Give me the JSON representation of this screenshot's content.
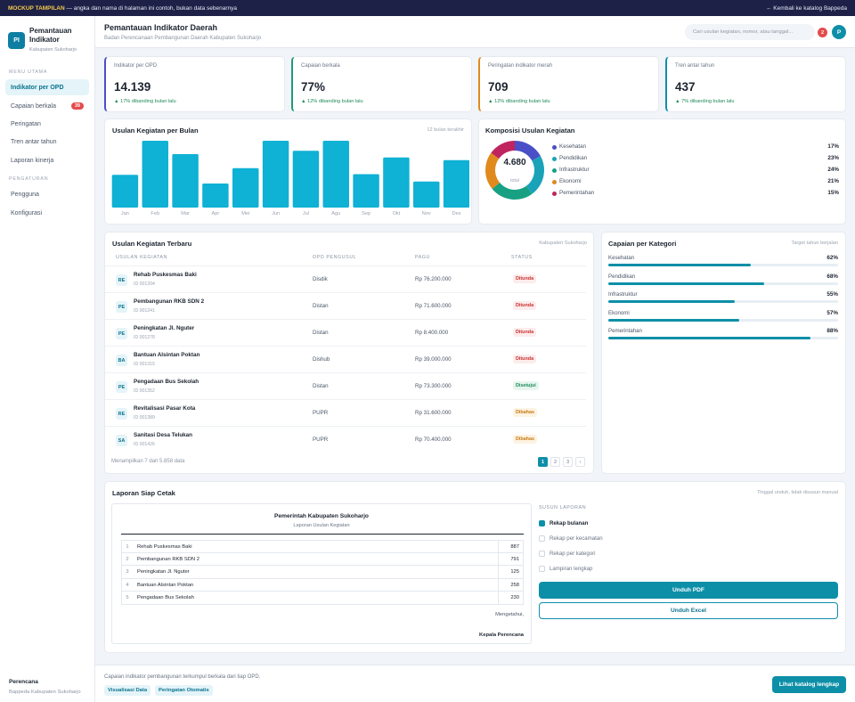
{
  "topbar": {
    "mock_tag": "MOCKUP TAMPILAN",
    "mock_text": " — angka dan nama di halaman ini contoh, bukan data sebenarnya",
    "back_link": "← Kembali ke katalog Bappeda"
  },
  "brand": {
    "logo": "PI",
    "title": "Pemantauan Indikator",
    "subtitle": "Kabupaten Sukoharjo"
  },
  "sidebar": {
    "section_main": "MENU UTAMA",
    "items": [
      {
        "label": "Indikator per OPD",
        "active": true
      },
      {
        "label": "Capaian berkala",
        "badge": "39"
      },
      {
        "label": "Peringatan"
      },
      {
        "label": "Tren antar tahun"
      },
      {
        "label": "Laporan kinerja"
      }
    ],
    "section_settings": "PENGATURAN",
    "settings": [
      {
        "label": "Pengguna"
      },
      {
        "label": "Konfigurasi"
      }
    ],
    "footer_title": "Perencana",
    "footer_sub": "Bappeda Kabupaten Sukoharjo"
  },
  "header": {
    "title": "Pemantauan Indikator Daerah",
    "subtitle": "Badan Perencanaan Pembangunan Daerah Kabupaten Sukoharjo",
    "search_placeholder": "Cari usulan kegiatan, nomor, atau tanggal...",
    "notif_count": "2",
    "avatar": "P"
  },
  "stats": [
    {
      "label": "Indikator per OPD",
      "value": "14.139",
      "change": "▲ 17% dibanding bulan lalu",
      "accent": "#4a4fc8"
    },
    {
      "label": "Capaian berkala",
      "value": "77%",
      "change": "▲ 12% dibanding bulan lalu",
      "accent": "#1f9a7a"
    },
    {
      "label": "Peringatan indikator merah",
      "value": "709",
      "change": "▲ 12% dibanding bulan lalu",
      "accent": "#e08a1e"
    },
    {
      "label": "Tren antar tahun",
      "value": "437",
      "change": "▲ 7% dibanding bulan lalu",
      "accent": "#0e8fa8"
    }
  ],
  "chart_data": [
    {
      "type": "bar",
      "title": "Usulan Kegiatan per Bulan",
      "note": "12 bulan terakhir",
      "categories": [
        "Jan",
        "Feb",
        "Mar",
        "Apr",
        "Mei",
        "Jun",
        "Jul",
        "Agu",
        "Sep",
        "Okt",
        "Nov",
        "Des"
      ],
      "values": [
        49,
        100,
        80,
        36,
        59,
        100,
        85,
        100,
        50,
        75,
        39,
        71
      ],
      "ylim": [
        0,
        100
      ],
      "color": "#0fb1d4"
    },
    {
      "type": "pie",
      "title": "Komposisi Usulan Kegiatan",
      "total": "4.680",
      "total_label": "total",
      "slices": [
        {
          "name": "Kesehatan",
          "value": 17,
          "label": "17%",
          "color": "#4a4fc8"
        },
        {
          "name": "Pendidikan",
          "value": 23,
          "label": "23%",
          "color": "#1aa3b8"
        },
        {
          "name": "Infrastruktur",
          "value": 24,
          "label": "24%",
          "color": "#17a082"
        },
        {
          "name": "Ekonomi",
          "value": 21,
          "label": "21%",
          "color": "#e08a1e"
        },
        {
          "name": "Pemerintahan",
          "value": 15,
          "label": "15%",
          "color": "#c0245e"
        }
      ]
    }
  ],
  "recent": {
    "title": "Usulan Kegiatan Terbaru",
    "note": "Kabupaten Sukoharjo",
    "columns": [
      "USULAN KEGIATAN",
      "OPD PENGUSUL",
      "PAGU",
      "STATUS"
    ],
    "rows": [
      {
        "icon": "RE",
        "name": "Rehab Puskesmas Baki",
        "id": "ID 001204",
        "opd": "Disdik",
        "pagu": "Rp 76.200.000",
        "status": "Ditunda",
        "tone": "red"
      },
      {
        "icon": "PE",
        "name": "Pembangunan RKB SDN 2",
        "id": "ID 001241",
        "opd": "Distan",
        "pagu": "Rp 71.600.000",
        "status": "Ditunda",
        "tone": "red"
      },
      {
        "icon": "PE",
        "name": "Peningkatan Jl. Nguter",
        "id": "ID 001278",
        "opd": "Distan",
        "pagu": "Rp 8.400.000",
        "status": "Ditunda",
        "tone": "red"
      },
      {
        "icon": "BA",
        "name": "Bantuan Alsintan Poktan",
        "id": "ID 001315",
        "opd": "Dishub",
        "pagu": "Rp 39.000.000",
        "status": "Ditunda",
        "tone": "red"
      },
      {
        "icon": "PE",
        "name": "Pengadaan Bus Sekolah",
        "id": "ID 001352",
        "opd": "Distan",
        "pagu": "Rp 73.300.000",
        "status": "Disetujui",
        "tone": "green"
      },
      {
        "icon": "RE",
        "name": "Revitalisasi Pasar Kota",
        "id": "ID 001389",
        "opd": "PUPR",
        "pagu": "Rp 31.600.000",
        "status": "Dibahas",
        "tone": "amber"
      },
      {
        "icon": "SA",
        "name": "Sanitasi Desa Telukan",
        "id": "ID 001426",
        "opd": "PUPR",
        "pagu": "Rp 70.400.000",
        "status": "Dibahas",
        "tone": "amber"
      }
    ],
    "showing": "Menampilkan 7 dari 5.858 data",
    "pages": [
      "1",
      "2",
      "3",
      "›"
    ]
  },
  "categories": {
    "title": "Capaian per Kategori",
    "note": "Target tahun berjalan",
    "items": [
      {
        "label": "Kesehatan",
        "pct": "62%",
        "value": 62
      },
      {
        "label": "Pendidikan",
        "pct": "68%",
        "value": 68
      },
      {
        "label": "Infrastruktur",
        "pct": "55%",
        "value": 55
      },
      {
        "label": "Ekonomi",
        "pct": "57%",
        "value": 57
      },
      {
        "label": "Pemerintahan",
        "pct": "88%",
        "value": 88
      }
    ]
  },
  "report": {
    "title": "Laporan Siap Cetak",
    "note": "Tinggal unduh, tidak disusun manual",
    "doc_title": "Pemerintah Kabupaten Sukoharjo",
    "doc_subtitle": "Laporan Usulan Kegiatan",
    "doc_rows": [
      {
        "n": "1",
        "name": "Rehab Puskesmas Baki",
        "v": "887"
      },
      {
        "n": "2",
        "name": "Pembangunan RKB SDN 2",
        "v": "791"
      },
      {
        "n": "3",
        "name": "Peningkatan Jl. Nguter",
        "v": "125"
      },
      {
        "n": "4",
        "name": "Bantuan Alsintan Poktan",
        "v": "258"
      },
      {
        "n": "5",
        "name": "Pengadaan Bus Sekolah",
        "v": "230"
      }
    ],
    "mengetahui": "Mengetahui,",
    "signer": "Kepala Perencana",
    "options_title": "SUSUN LAPORAN",
    "options": [
      {
        "label": "Rekap bulanan",
        "checked": true
      },
      {
        "label": "Rekap per kecamatan"
      },
      {
        "label": "Rekap per kategori"
      },
      {
        "label": "Lampiran lengkap"
      }
    ],
    "btn_pdf": "Unduh PDF",
    "btn_excel": "Unduh Excel"
  },
  "footer": {
    "text": "Capaian indikator pembangunan terkumpul berkala dari tiap OPD.",
    "chips": [
      "Visualisasi Data",
      "Peringatan Otomatis"
    ],
    "cta": "Lihat katalog lengkap"
  }
}
